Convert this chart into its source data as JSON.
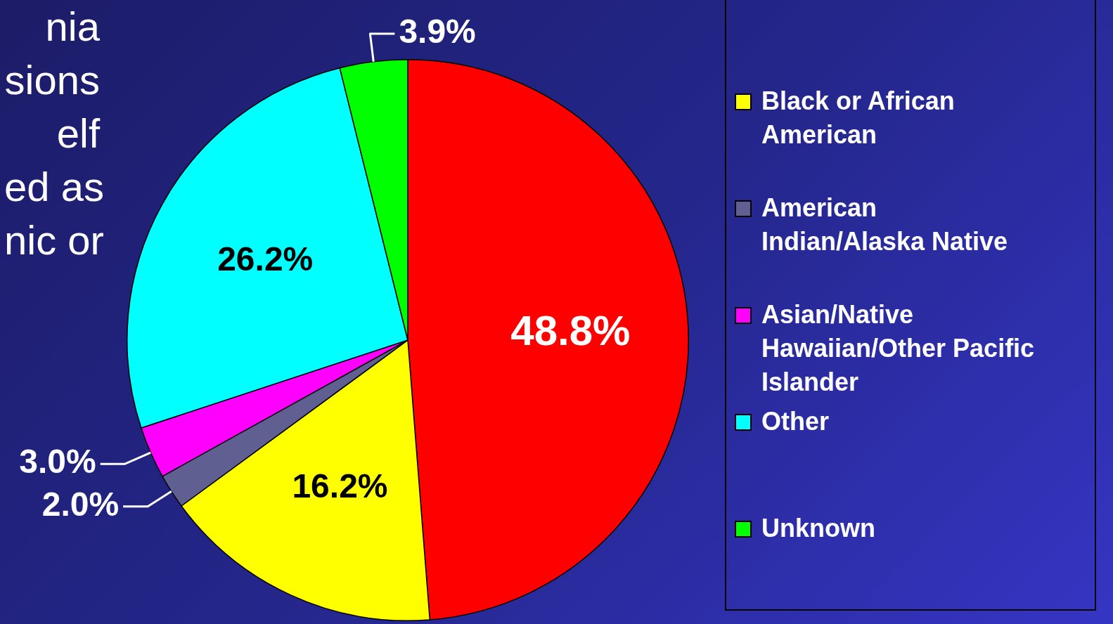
{
  "chart_data": {
    "type": "pie",
    "categories": [
      null,
      "Black or African American",
      "American Indian/Alaska Native",
      "Asian/Native Hawaiian/Other Pacific Islander",
      "Other",
      "Unknown"
    ],
    "values": [
      48.8,
      16.2,
      2.0,
      3.0,
      26.2,
      3.9
    ],
    "colors": [
      "#ff0000",
      "#ffff00",
      "#5f5f91",
      "#ff00ff",
      "#00ffff",
      "#00ff00"
    ],
    "value_labels": [
      "48.8%",
      "16.2%",
      "2.0%",
      "3.0%",
      "26.2%",
      "3.9%"
    ],
    "legend": "right",
    "annotations": [
      "nia\nsions\nelf\ned as\nnic or"
    ]
  }
}
